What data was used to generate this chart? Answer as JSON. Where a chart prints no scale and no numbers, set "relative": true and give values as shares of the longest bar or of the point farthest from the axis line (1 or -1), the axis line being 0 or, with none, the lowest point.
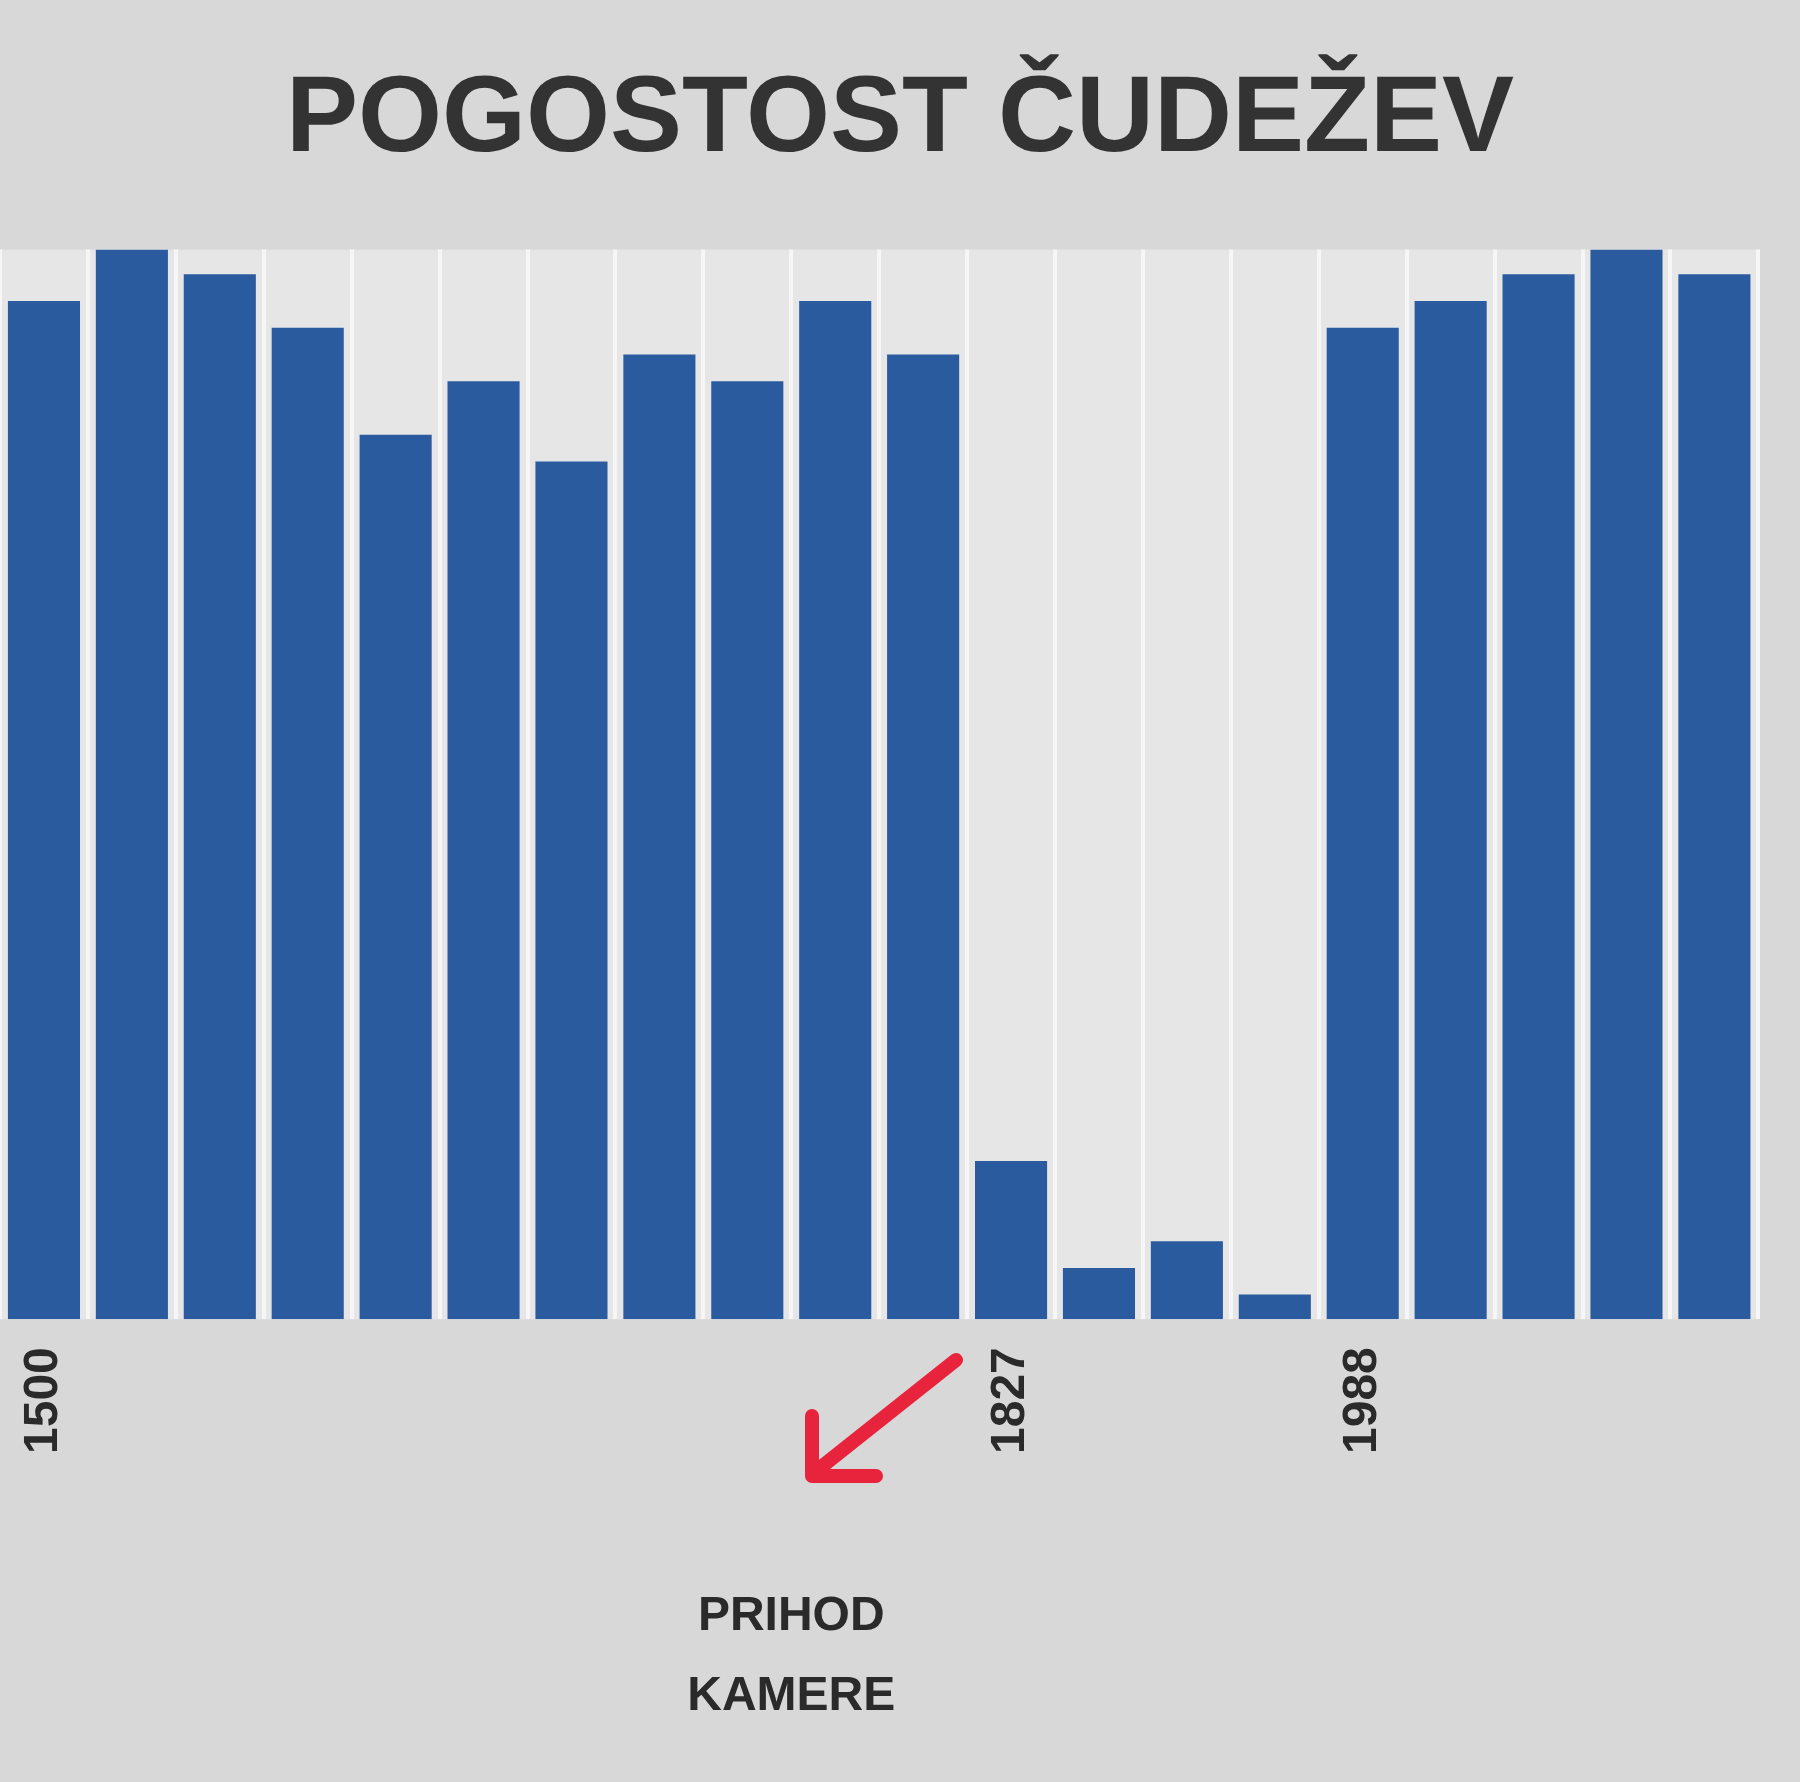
{
  "chart_data": {
    "type": "bar",
    "title": "POGOSTOST ČUDEŽEV",
    "relative": true,
    "grid": "x",
    "color": "#2b5b9f",
    "categories": [
      "1500",
      null,
      null,
      null,
      null,
      null,
      null,
      null,
      null,
      null,
      null,
      "1827",
      null,
      null,
      null,
      "1988",
      null,
      null,
      null,
      null
    ],
    "values": [
      0.952,
      1,
      0.977,
      0.927,
      0.827,
      0.877,
      0.802,
      0.902,
      0.877,
      0.952,
      0.902,
      0.148,
      0.048,
      0.073,
      0.023,
      0.927,
      0.952,
      0.977,
      1,
      0.977
    ],
    "annotations": [
      "PRIHOD KAMERE"
    ]
  }
}
